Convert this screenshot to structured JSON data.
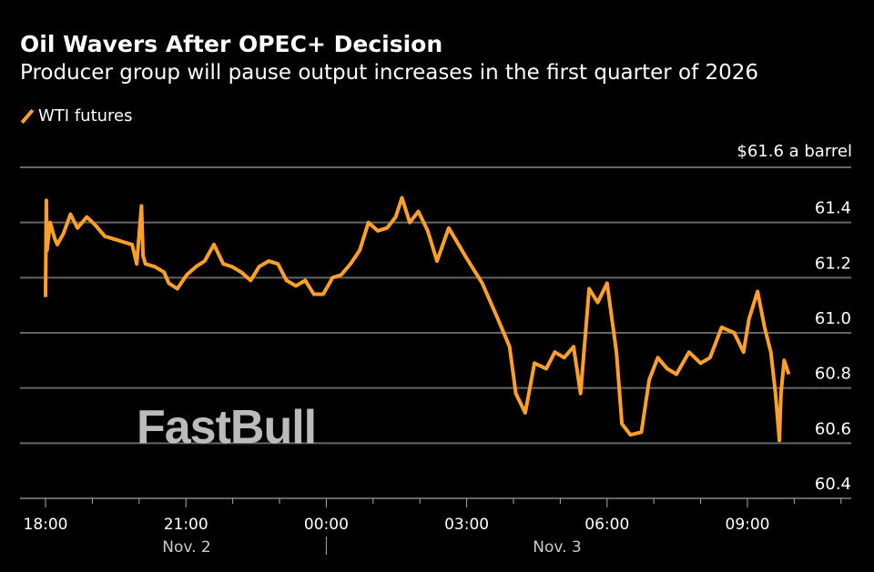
{
  "chart_data": {
    "type": "line",
    "title": "Oil Wavers After OPEC+ Decision",
    "subtitle": "Producer group will pause output increases in the first quarter of 2026",
    "unit_label": "$61.6 a barrel",
    "legend": [
      {
        "name": "WTI futures",
        "color": "#ffa028"
      }
    ],
    "legend_position": "top-left",
    "grid": true,
    "ylim": [
      60.4,
      61.6
    ],
    "y_ticks": [
      "61.4",
      "61.2",
      "61.0",
      "60.8",
      "60.6",
      "60.4"
    ],
    "x_ticks": [
      "18:00",
      "21:00",
      "00:00",
      "03:00",
      "06:00",
      "09:00"
    ],
    "date_labels": [
      "Nov. 2",
      "Nov. 3"
    ],
    "series": [
      {
        "name": "WTI futures",
        "color": "#ffa028",
        "x": [
          "18:00",
          "18:01",
          "18:02",
          "18:06",
          "18:12",
          "18:15",
          "18:23",
          "18:32",
          "18:41",
          "18:53",
          "19:04",
          "19:16",
          "19:28",
          "19:39",
          "19:51",
          "19:57",
          "20:03",
          "20:05",
          "20:08",
          "20:20",
          "20:32",
          "20:38",
          "20:49",
          "21:01",
          "21:13",
          "21:24",
          "21:36",
          "21:48",
          "21:59",
          "22:11",
          "22:23",
          "22:34",
          "22:46",
          "22:58",
          "23:09",
          "23:21",
          "23:33",
          "23:44",
          "23:56",
          "00:08",
          "00:19",
          "00:31",
          "00:43",
          "00:54",
          "01:06",
          "01:18",
          "01:29",
          "01:37",
          "01:47",
          "01:58",
          "02:10",
          "02:22",
          "02:37",
          "03:00",
          "03:20",
          "03:40",
          "03:55",
          "04:03",
          "04:15",
          "04:27",
          "04:42",
          "04:53",
          "05:05",
          "05:17",
          "05:26",
          "05:37",
          "05:48",
          "06:00",
          "06:12",
          "06:19",
          "06:30",
          "06:44",
          "06:54",
          "07:05",
          "07:17",
          "07:29",
          "07:45",
          "08:00",
          "08:12",
          "08:27",
          "08:43",
          "08:55",
          "09:02",
          "09:13",
          "09:22",
          "09:30",
          "09:36",
          "09:41",
          "09:43",
          "09:47",
          "09:53"
        ],
        "y": [
          61.13,
          61.48,
          61.3,
          61.4,
          61.34,
          61.32,
          61.36,
          61.43,
          61.38,
          61.42,
          61.39,
          61.35,
          61.34,
          61.33,
          61.32,
          61.25,
          61.46,
          61.28,
          61.25,
          61.24,
          61.22,
          61.18,
          61.16,
          61.21,
          61.24,
          61.26,
          61.32,
          61.25,
          61.24,
          61.22,
          61.19,
          61.24,
          61.26,
          61.25,
          61.19,
          61.17,
          61.19,
          61.14,
          61.14,
          61.2,
          61.21,
          61.25,
          61.3,
          61.4,
          61.37,
          61.38,
          61.42,
          61.49,
          61.4,
          61.44,
          61.37,
          61.26,
          61.38,
          61.27,
          61.18,
          61.05,
          60.95,
          60.78,
          60.71,
          60.89,
          60.87,
          60.93,
          60.91,
          60.95,
          60.78,
          61.16,
          61.11,
          61.18,
          60.93,
          60.67,
          60.63,
          60.64,
          60.83,
          60.91,
          60.87,
          60.85,
          60.93,
          60.89,
          60.91,
          61.02,
          61.0,
          60.93,
          61.05,
          61.15,
          61.02,
          60.93,
          60.78,
          60.61,
          60.78,
          60.9,
          60.85
        ]
      }
    ]
  },
  "watermark": "FastBull"
}
